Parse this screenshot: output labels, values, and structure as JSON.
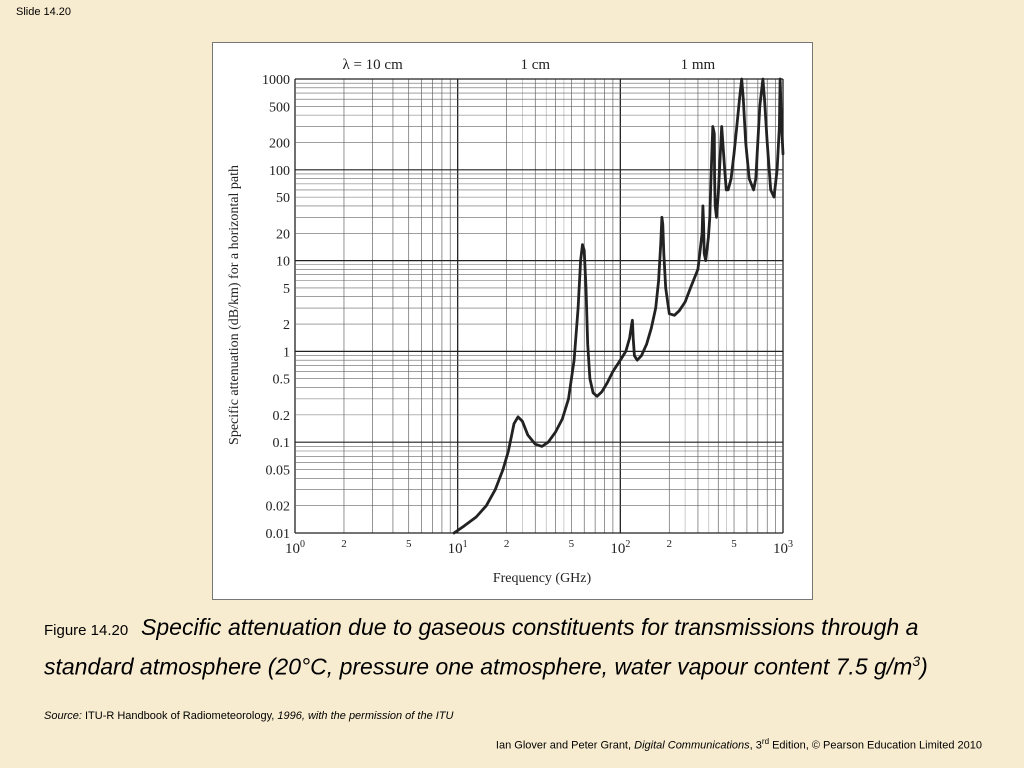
{
  "slide": {
    "number": "Slide 14.20"
  },
  "chart_data": {
    "type": "line",
    "xscale": "log",
    "yscale": "log",
    "xlim": [
      1,
      1000
    ],
    "ylim": [
      0.01,
      1000
    ],
    "grid": true,
    "xlabel": "Frequency (GHz)",
    "ylabel": "Specific attenuation (dB/km) for a horizontal path",
    "x_ticks": [
      {
        "value": 1,
        "base": "10",
        "exp": "0"
      },
      {
        "value": 2,
        "label": "2"
      },
      {
        "value": 5,
        "label": "5"
      },
      {
        "value": 10,
        "base": "10",
        "exp": "1"
      },
      {
        "value": 20,
        "label": "2"
      },
      {
        "value": 50,
        "label": "5"
      },
      {
        "value": 100,
        "base": "10",
        "exp": "2"
      },
      {
        "value": 200,
        "label": "2"
      },
      {
        "value": 500,
        "label": "5"
      },
      {
        "value": 1000,
        "base": "10",
        "exp": "3"
      }
    ],
    "y_ticks": [
      {
        "value": 0.01,
        "label": "0.01"
      },
      {
        "value": 0.02,
        "label": "0.02"
      },
      {
        "value": 0.05,
        "label": "0.05"
      },
      {
        "value": 0.1,
        "label": "0.1"
      },
      {
        "value": 0.2,
        "label": "0.2"
      },
      {
        "value": 0.5,
        "label": "0.5"
      },
      {
        "value": 1,
        "label": "1"
      },
      {
        "value": 2,
        "label": "2"
      },
      {
        "value": 5,
        "label": "5"
      },
      {
        "value": 10,
        "label": "10"
      },
      {
        "value": 20,
        "label": "20"
      },
      {
        "value": 50,
        "label": "50"
      },
      {
        "value": 100,
        "label": "100"
      },
      {
        "value": 200,
        "label": "200"
      },
      {
        "value": 500,
        "label": "500"
      },
      {
        "value": 1000,
        "label": "1000"
      }
    ],
    "wavelength_labels": [
      {
        "freq": 3,
        "label": "λ = 10 cm"
      },
      {
        "freq": 30,
        "label": "1 cm"
      },
      {
        "freq": 300,
        "label": "1 mm"
      }
    ],
    "series": [
      {
        "x": [
          9.5,
          11,
          13,
          15,
          17,
          19,
          20.5,
          21.5,
          22.2,
          23.5,
          25,
          27,
          30,
          33,
          36,
          40,
          44,
          48,
          52,
          55,
          57,
          58.5,
          60,
          61.5,
          63,
          65,
          68,
          72,
          77,
          83,
          90,
          100,
          108,
          114,
          117.5,
          118.7,
          120,
          122,
          127,
          135,
          145,
          155,
          165,
          172,
          177,
          180,
          182.5,
          185,
          190,
          200,
          215,
          230,
          250,
          270,
          300,
          318,
          322,
          325,
          328,
          335,
          348,
          355,
          360,
          370,
          378,
          380,
          383,
          390,
          400,
          420,
          440,
          448,
          460,
          480,
          500,
          520,
          540,
          557,
          570,
          590,
          620,
          660,
          680,
          700,
          720,
          752,
          770,
          800,
          840,
          880,
          920,
          950,
          960,
          980,
          1000
        ],
        "y": [
          0.01,
          0.012,
          0.015,
          0.02,
          0.03,
          0.05,
          0.08,
          0.12,
          0.16,
          0.19,
          0.17,
          0.12,
          0.095,
          0.09,
          0.1,
          0.13,
          0.18,
          0.3,
          0.8,
          3,
          10,
          15,
          13,
          5,
          1.2,
          0.5,
          0.35,
          0.32,
          0.36,
          0.45,
          0.6,
          0.8,
          1.0,
          1.4,
          2.0,
          2.2,
          1.4,
          0.9,
          0.8,
          0.9,
          1.2,
          1.8,
          3,
          6,
          15,
          30,
          25,
          12,
          5,
          2.6,
          2.5,
          2.8,
          3.5,
          5,
          8,
          20,
          40,
          25,
          12,
          10,
          18,
          30,
          70,
          300,
          250,
          80,
          40,
          30,
          55,
          300,
          90,
          60,
          60,
          80,
          150,
          300,
          600,
          1000,
          600,
          200,
          80,
          60,
          80,
          200,
          500,
          1000,
          600,
          200,
          60,
          50,
          100,
          300,
          1000,
          300,
          150
        ]
      }
    ]
  },
  "caption": {
    "figure_label": "Figure 14.20",
    "text": "Specific attenuation due to gaseous constituents for transmissions through a standard atmosphere (20°C, pressure one atmosphere, water vapour content 7.5 g/m",
    "sup": "3",
    "text_end": ")"
  },
  "source": {
    "label": "Source:",
    "handbook": "ITU-R Handbook of Radiometeorology,",
    "rest": "1996, with the permission of the ITU"
  },
  "footer": {
    "authors": "Ian Glover and Peter Grant,",
    "book": "Digital Communications",
    "edition_num": ", 3",
    "edition_sup": "rd",
    "rest": " Edition, © Pearson Education Limited 2010"
  }
}
